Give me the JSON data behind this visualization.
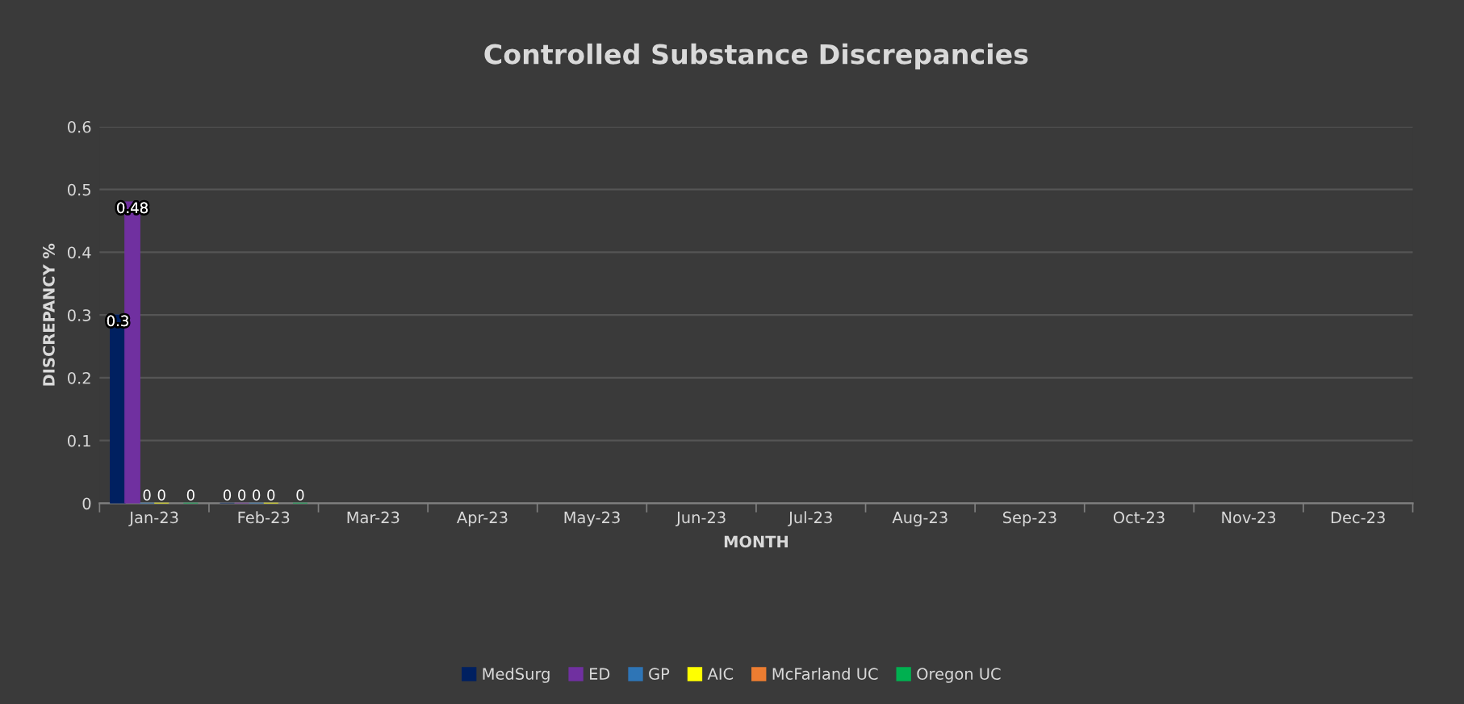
{
  "chart_data": {
    "type": "bar",
    "title": "Controlled Substance Discrepancies",
    "xlabel": "MONTH",
    "ylabel": "DISCREPANCY %",
    "categories": [
      "Jan-23",
      "Feb-23",
      "Mar-23",
      "Apr-23",
      "May-23",
      "Jun-23",
      "Jul-23",
      "Aug-23",
      "Sep-23",
      "Oct-23",
      "Nov-23",
      "Dec-23"
    ],
    "series": [
      {
        "name": "MedSurg",
        "color": "#002060",
        "values": [
          0.3,
          0,
          null,
          null,
          null,
          null,
          null,
          null,
          null,
          null,
          null,
          null
        ]
      },
      {
        "name": "ED",
        "color": "#7030a0",
        "values": [
          0.48,
          0,
          null,
          null,
          null,
          null,
          null,
          null,
          null,
          null,
          null,
          null
        ]
      },
      {
        "name": "GP",
        "color": "#2e75b6",
        "values": [
          0,
          0,
          null,
          null,
          null,
          null,
          null,
          null,
          null,
          null,
          null,
          null
        ]
      },
      {
        "name": "AIC",
        "color": "#ffff00",
        "values": [
          0,
          0,
          null,
          null,
          null,
          null,
          null,
          null,
          null,
          null,
          null,
          null
        ]
      },
      {
        "name": "McFarland UC",
        "color": "#ed7d31",
        "values": [
          null,
          null,
          null,
          null,
          null,
          null,
          null,
          null,
          null,
          null,
          null,
          null
        ]
      },
      {
        "name": "Oregon UC",
        "color": "#00b050",
        "values": [
          0,
          0,
          null,
          null,
          null,
          null,
          null,
          null,
          null,
          null,
          null,
          null
        ]
      }
    ],
    "ylim": [
      0,
      0.6
    ],
    "yticks": [
      0,
      0.1,
      0.2,
      0.3,
      0.4,
      0.5,
      0.6
    ],
    "grid": "y",
    "legend": "bottom",
    "data_labels": true
  }
}
